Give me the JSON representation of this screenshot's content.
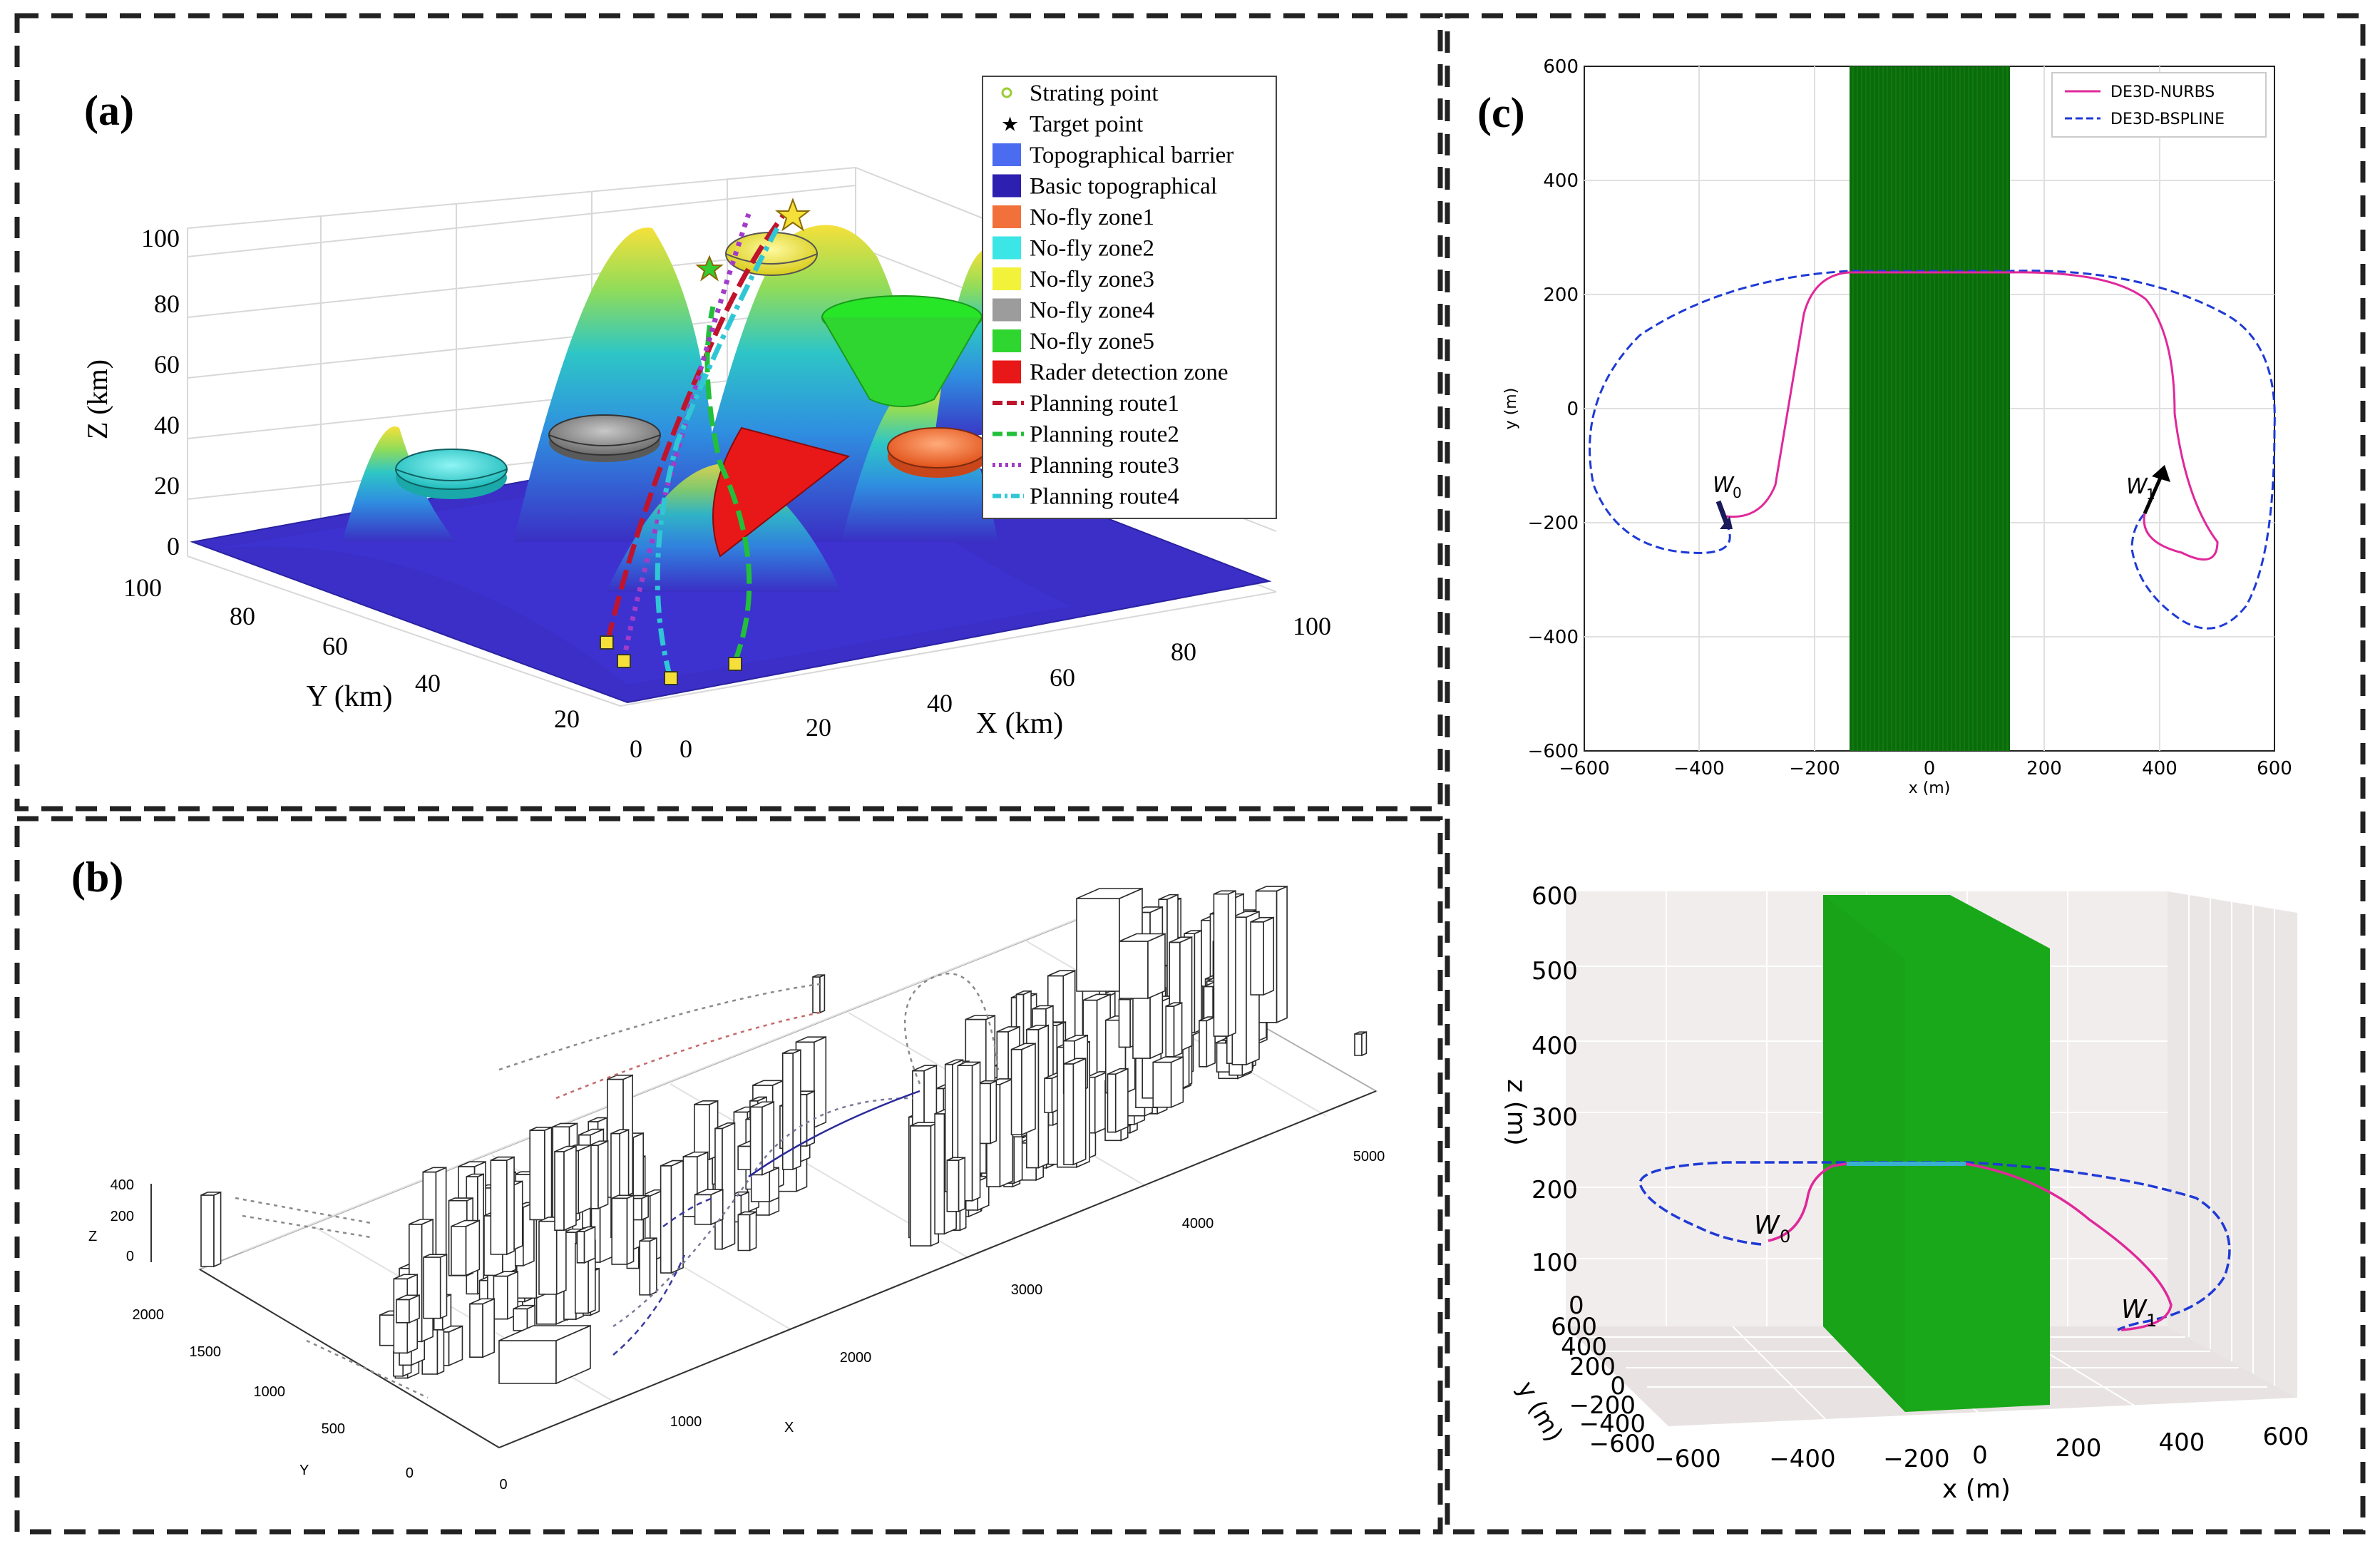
{
  "panel_a": {
    "label": "(a)",
    "z_axis_label": "Z (km)",
    "y_axis_label": "Y (km)",
    "x_axis_label": "X (km)",
    "z_ticks": [
      "0",
      "20",
      "40",
      "60",
      "80",
      "100"
    ],
    "y_ticks": [
      "0",
      "20",
      "40",
      "60",
      "80",
      "100"
    ],
    "x_ticks": [
      "0",
      "20",
      "40",
      "60",
      "80",
      "100"
    ],
    "legend": [
      {
        "label": "Strating point",
        "color": "#9acd32",
        "marker": "circle"
      },
      {
        "label": "Target point",
        "color": "#000000",
        "marker": "star"
      },
      {
        "label": "Topographical barrier",
        "color": "#4b6cf0",
        "marker": "patch"
      },
      {
        "label": "Basic topographical",
        "color": "#2d1fb0",
        "marker": "patch"
      },
      {
        "label": "No-fly zone1",
        "color": "#f2713a",
        "marker": "patch"
      },
      {
        "label": "No-fly zone2",
        "color": "#3de6e6",
        "marker": "patch"
      },
      {
        "label": "No-fly zone3",
        "color": "#f2f23a",
        "marker": "patch"
      },
      {
        "label": "No-fly zone4",
        "color": "#9c9c9c",
        "marker": "patch"
      },
      {
        "label": "No-fly zone5",
        "color": "#2fd62f",
        "marker": "patch"
      },
      {
        "label": "Rader detection zone",
        "color": "#e81818",
        "marker": "patch"
      },
      {
        "label": "Planning route1",
        "color": "#c0142c",
        "marker": "dashline"
      },
      {
        "label": "Planning route2",
        "color": "#22c03a",
        "marker": "dashline"
      },
      {
        "label": "Planning route3",
        "color": "#a33bc9",
        "marker": "dotline"
      },
      {
        "label": "Planning route4",
        "color": "#2fc7d6",
        "marker": "dashdot"
      }
    ]
  },
  "panel_b": {
    "label": "(b)",
    "z_axis_label": "Z",
    "y_axis_label": "Y",
    "x_axis_label": "X",
    "z_ticks": [
      "0",
      "200",
      "400"
    ],
    "y_ticks": [
      "0",
      "500",
      "1000",
      "1500",
      "2000"
    ],
    "x_ticks": [
      "0",
      "1000",
      "2000",
      "3000",
      "4000",
      "5000"
    ]
  },
  "panel_c_top": {
    "label": "(c)",
    "x_axis_label": "x (m)",
    "y_axis_label": "y (m)",
    "x_ticks": [
      "−600",
      "−400",
      "−200",
      "0",
      "200",
      "400",
      "600"
    ],
    "y_ticks": [
      "600",
      "400",
      "200",
      "0",
      "−200",
      "−400",
      "−600"
    ],
    "legend": [
      {
        "label": "DE3D-NURBS",
        "color": "#e0289a",
        "style": "solid"
      },
      {
        "label": "DE3D-BSPLINE",
        "color": "#1f3ad6",
        "style": "dashed"
      }
    ],
    "waypoint_start": "W",
    "waypoint_start_sub": "0",
    "waypoint_end": "W",
    "waypoint_end_sub": "1",
    "obstacle_color": "#0b6b0b"
  },
  "panel_c_bottom": {
    "x_axis_label": "x (m)",
    "y_axis_label": "y (m)",
    "z_axis_label": "z (m)",
    "x_ticks": [
      "−600",
      "−400",
      "−200",
      "0",
      "200",
      "400",
      "600"
    ],
    "y_ticks": [
      "600",
      "400",
      "200",
      "0",
      "−200",
      "−400",
      "−600"
    ],
    "z_ticks": [
      "0",
      "100",
      "200",
      "300",
      "400",
      "500",
      "600"
    ],
    "waypoint_start": "W",
    "waypoint_start_sub": "0",
    "waypoint_end": "W",
    "waypoint_end_sub": "1",
    "obstacle_color": "#19a819"
  }
}
